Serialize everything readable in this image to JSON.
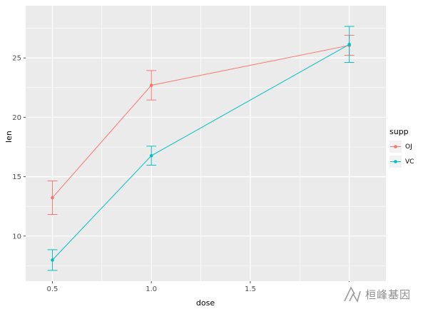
{
  "watermark": {
    "text": "桓峰基因"
  },
  "chart_data": {
    "type": "line",
    "title": "",
    "xlabel": "dose",
    "ylabel": "len",
    "legend_title": "supp",
    "legend_position": "right",
    "grid": true,
    "panel_bg": "#EBEBEB",
    "grid_color": "#FFFFFF",
    "tick_text_color": "#4D4D4D",
    "x": [
      0.5,
      1.0,
      2.0
    ],
    "series": [
      {
        "name": "OJ",
        "color": "#F8766D",
        "values": [
          13.23,
          22.7,
          26.06
        ],
        "err_low": [
          11.82,
          21.46,
          25.22
        ],
        "err_high": [
          14.64,
          23.94,
          26.91
        ]
      },
      {
        "name": "VC",
        "color": "#00BFC4",
        "values": [
          7.98,
          16.77,
          26.14
        ],
        "err_low": [
          7.11,
          15.97,
          24.62
        ],
        "err_high": [
          8.85,
          17.57,
          27.66
        ]
      }
    ],
    "x_ticks": [
      0.5,
      1.0,
      1.5,
      2.0
    ],
    "y_ticks": [
      10,
      15,
      20,
      25
    ],
    "x_minor": [
      0.75,
      1.25,
      1.75
    ],
    "y_minor": [
      7.5,
      12.5,
      17.5,
      22.5,
      27.5
    ],
    "xlim": [
      0.365,
      2.185
    ],
    "ylim": [
      6.2,
      29.4
    ]
  }
}
